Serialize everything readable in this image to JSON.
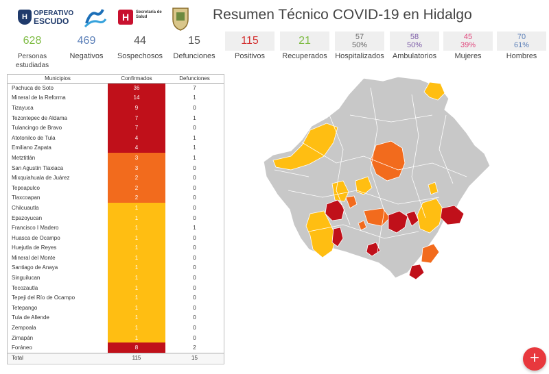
{
  "header": {
    "title": "Resumen Técnico COVID-19 en Hidalgo",
    "logos": {
      "escudo_line1": "OPERATIVO",
      "escudo_line2": "ESCUDO",
      "salud_line1": "Secretaría de",
      "salud_line2": "Salud"
    }
  },
  "stats": [
    {
      "value": "628",
      "label": "Personas estudiadas",
      "color": "#7dbb42"
    },
    {
      "value": "469",
      "label": "Negativos",
      "color": "#5b7fb8"
    },
    {
      "value": "44",
      "label": "Sospechosos",
      "color": "#555555"
    },
    {
      "value": "15",
      "label": "Defunciones",
      "color": "#555555"
    },
    {
      "value": "115",
      "label": "Positivos",
      "color": "#d32f2f"
    },
    {
      "value": "21",
      "label": "Recuperados",
      "color": "#7dbb42"
    },
    {
      "value": "57",
      "pct": "50%",
      "label": "Hospitalizados",
      "color": "#666666"
    },
    {
      "value": "58",
      "pct": "50%",
      "label": "Ambulatorios",
      "color": "#7b5aa6"
    },
    {
      "value": "45",
      "pct": "39%",
      "label": "Mujeres",
      "color": "#e0457b"
    },
    {
      "value": "70",
      "pct": "61%",
      "label": "Hombres",
      "color": "#5b7fb8"
    }
  ],
  "table": {
    "headers": [
      "Municipios",
      "Confirmados",
      "Defunciones"
    ],
    "rows": [
      {
        "municipio": "Pachuca de Soto",
        "confirmados": "36",
        "defunciones": "7",
        "color": "#c0101a"
      },
      {
        "municipio": "Mineral de la Reforma",
        "confirmados": "14",
        "defunciones": "1",
        "color": "#c0101a"
      },
      {
        "municipio": "Tizayuca",
        "confirmados": "9",
        "defunciones": "0",
        "color": "#c0101a"
      },
      {
        "municipio": "Tezontepec de Aldama",
        "confirmados": "7",
        "defunciones": "1",
        "color": "#c0101a"
      },
      {
        "municipio": "Tulancingo de Bravo",
        "confirmados": "7",
        "defunciones": "0",
        "color": "#c0101a"
      },
      {
        "municipio": "Atotonilco de Tula",
        "confirmados": "4",
        "defunciones": "1",
        "color": "#c0101a"
      },
      {
        "municipio": "Emiliano Zapata",
        "confirmados": "4",
        "defunciones": "1",
        "color": "#c0101a"
      },
      {
        "municipio": "Metztitlán",
        "confirmados": "3",
        "defunciones": "1",
        "color": "#f26b1d"
      },
      {
        "municipio": "San Agustín Tlaxiaca",
        "confirmados": "3",
        "defunciones": "0",
        "color": "#f26b1d"
      },
      {
        "municipio": "Mixquiahuala de Juárez",
        "confirmados": "2",
        "defunciones": "0",
        "color": "#f26b1d"
      },
      {
        "municipio": "Tepeapulco",
        "confirmados": "2",
        "defunciones": "0",
        "color": "#f26b1d"
      },
      {
        "municipio": "Tlaxcoapan",
        "confirmados": "2",
        "defunciones": "0",
        "color": "#f26b1d"
      },
      {
        "municipio": "Chilcuautla",
        "confirmados": "1",
        "defunciones": "0",
        "color": "#ffbe12"
      },
      {
        "municipio": "Epazoyucan",
        "confirmados": "1",
        "defunciones": "0",
        "color": "#ffbe12"
      },
      {
        "municipio": "Francisco I Madero",
        "confirmados": "1",
        "defunciones": "1",
        "color": "#ffbe12"
      },
      {
        "municipio": "Huasca de Ocampo",
        "confirmados": "1",
        "defunciones": "0",
        "color": "#ffbe12"
      },
      {
        "municipio": "Huejutla de Reyes",
        "confirmados": "1",
        "defunciones": "0",
        "color": "#ffbe12"
      },
      {
        "municipio": "Mineral del Monte",
        "confirmados": "1",
        "defunciones": "0",
        "color": "#ffbe12"
      },
      {
        "municipio": "Santiago de Anaya",
        "confirmados": "1",
        "defunciones": "0",
        "color": "#ffbe12"
      },
      {
        "municipio": "Singuilucan",
        "confirmados": "1",
        "defunciones": "0",
        "color": "#ffbe12"
      },
      {
        "municipio": "Tecozautla",
        "confirmados": "1",
        "defunciones": "0",
        "color": "#ffbe12"
      },
      {
        "municipio": "Tepeji del Río de Ocampo",
        "confirmados": "1",
        "defunciones": "0",
        "color": "#ffbe12"
      },
      {
        "municipio": "Tetepango",
        "confirmados": "1",
        "defunciones": "0",
        "color": "#ffbe12"
      },
      {
        "municipio": "Tula de Allende",
        "confirmados": "1",
        "defunciones": "0",
        "color": "#ffbe12"
      },
      {
        "municipio": "Zempoala",
        "confirmados": "1",
        "defunciones": "0",
        "color": "#ffbe12"
      },
      {
        "municipio": "Zimapán",
        "confirmados": "1",
        "defunciones": "0",
        "color": "#ffbe12"
      },
      {
        "municipio": "Foráneo",
        "confirmados": "8",
        "defunciones": "2",
        "color": "#c0101a"
      }
    ],
    "total": {
      "label": "Total",
      "confirmados": "115",
      "defunciones": "15"
    }
  },
  "map": {
    "colors": {
      "none": "#c8c8c8",
      "low": "#ffbe12",
      "mid": "#f26b1d",
      "high": "#c0101a"
    }
  },
  "fab": {
    "icon": "plus-icon",
    "symbol": "+"
  }
}
